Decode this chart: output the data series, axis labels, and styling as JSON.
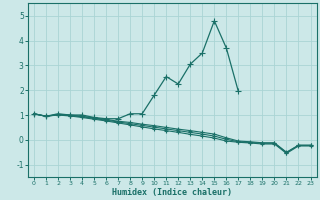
{
  "xlabel": "Humidex (Indice chaleur)",
  "bg_color": "#cce8e8",
  "grid_color": "#aad4d4",
  "line_color": "#1a7068",
  "xlim": [
    -0.5,
    23.5
  ],
  "ylim": [
    -1.5,
    5.5
  ],
  "x": [
    0,
    1,
    2,
    3,
    4,
    5,
    6,
    7,
    8,
    9,
    10,
    11,
    12,
    13,
    14,
    15,
    16,
    17,
    18,
    19,
    20,
    21,
    22,
    23
  ],
  "line_peak": [
    1.05,
    0.95,
    1.05,
    1.0,
    1.0,
    0.9,
    0.85,
    0.85,
    1.05,
    1.05,
    1.8,
    2.55,
    2.25,
    3.05,
    3.5,
    4.8,
    3.7,
    1.95,
    null,
    null,
    null,
    null,
    null,
    null
  ],
  "line_a": [
    1.05,
    0.95,
    1.02,
    1.0,
    0.95,
    0.88,
    0.82,
    0.75,
    0.7,
    0.63,
    0.57,
    0.5,
    0.43,
    0.37,
    0.3,
    0.23,
    0.08,
    -0.05,
    -0.08,
    -0.12,
    -0.12,
    -0.5,
    -0.22,
    -0.22
  ],
  "line_b": [
    1.05,
    0.95,
    1.01,
    0.98,
    0.93,
    0.86,
    0.79,
    0.72,
    0.65,
    0.58,
    0.51,
    0.44,
    0.37,
    0.3,
    0.23,
    0.15,
    0.02,
    -0.08,
    -0.11,
    -0.14,
    -0.14,
    -0.52,
    -0.22,
    -0.22
  ],
  "line_c": [
    1.05,
    0.95,
    1.0,
    0.96,
    0.9,
    0.83,
    0.76,
    0.68,
    0.6,
    0.52,
    0.44,
    0.37,
    0.3,
    0.22,
    0.15,
    0.07,
    -0.05,
    -0.1,
    -0.13,
    -0.17,
    -0.17,
    -0.55,
    -0.25,
    -0.25
  ],
  "yticks": [
    -1,
    0,
    1,
    2,
    3,
    4,
    5
  ],
  "xticks": [
    0,
    1,
    2,
    3,
    4,
    5,
    6,
    7,
    8,
    9,
    10,
    11,
    12,
    13,
    14,
    15,
    16,
    17,
    18,
    19,
    20,
    21,
    22,
    23
  ]
}
